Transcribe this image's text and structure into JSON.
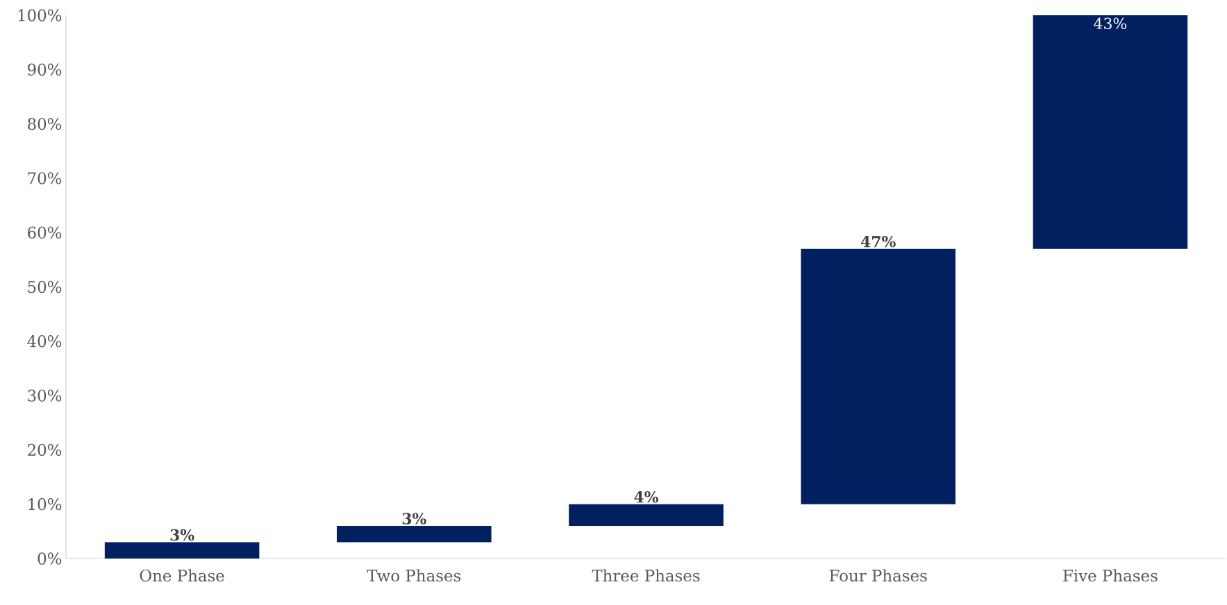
{
  "chart_data": {
    "type": "bar",
    "categories": [
      "One Phase",
      "Two Phases",
      "Three Phases",
      "Four Phases",
      "Five Phases"
    ],
    "base": [
      0,
      3,
      6,
      10,
      57
    ],
    "values": [
      3,
      3,
      4,
      47,
      43
    ],
    "value_labels": [
      "3%",
      "3%",
      "4%",
      "47%",
      "43%"
    ],
    "color": "#002060",
    "ylim": [
      0,
      100
    ],
    "yticks": [
      {
        "value": 0,
        "label": "0%"
      },
      {
        "value": 10,
        "label": "10%"
      },
      {
        "value": 20,
        "label": "20%"
      },
      {
        "value": 30,
        "label": "30%"
      },
      {
        "value": 40,
        "label": "40%"
      },
      {
        "value": 50,
        "label": "50%"
      },
      {
        "value": 60,
        "label": "60%"
      },
      {
        "value": 70,
        "label": "70%"
      },
      {
        "value": 80,
        "label": "80%"
      },
      {
        "value": 90,
        "label": "90%"
      },
      {
        "value": 100,
        "label": "100%"
      }
    ],
    "grid": false
  }
}
